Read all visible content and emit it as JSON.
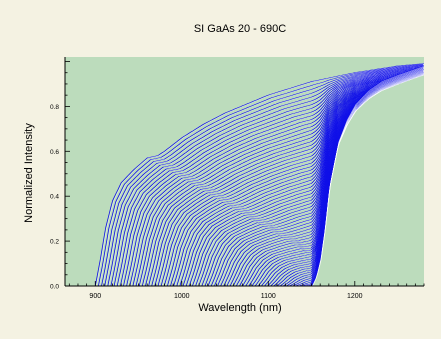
{
  "colors": {
    "page_background": "#f4f2e2",
    "plot_background": "#bcdcbc",
    "curve_color": "#1010e8",
    "curve_highlight": "#ffffff",
    "axis_color": "#000000"
  },
  "chart_data": {
    "type": "line",
    "title": "SI GaAs 20 - 690C",
    "xlabel": "Wavelength (nm)",
    "ylabel": "Normalized Intensity",
    "xlim": [
      865,
      1280
    ],
    "ylim": [
      0,
      1.02
    ],
    "x_ticks": [
      900,
      1000,
      1100,
      1200
    ],
    "x_tick_labels": [
      "900",
      "1000",
      "1100",
      "1200"
    ],
    "y_ticks": [
      0.0,
      0.2,
      0.4,
      0.6,
      0.8
    ],
    "y_tick_labels": [
      "0.0",
      "0.2",
      "0.4",
      "0.6",
      "0.8"
    ],
    "grid": false,
    "legend": "none",
    "series_count": 70,
    "series_description": "Family of normalized transmission curves; absorption edge shifts from about 900 nm (first curve) to about 1155 nm (last curve)",
    "first_curve": {
      "x": [
        900,
        905,
        912,
        920,
        930,
        945,
        960,
        972,
        980,
        990,
        1000,
        1025,
        1050,
        1075,
        1100,
        1125,
        1150,
        1175,
        1200,
        1225,
        1250,
        1280
      ],
      "y": [
        0.0,
        0.1,
        0.26,
        0.38,
        0.46,
        0.52,
        0.57,
        0.58,
        0.6,
        0.63,
        0.66,
        0.72,
        0.77,
        0.81,
        0.85,
        0.88,
        0.91,
        0.93,
        0.95,
        0.965,
        0.98,
        0.99
      ]
    },
    "last_curve": {
      "x": [
        1150,
        1155,
        1160,
        1165,
        1170,
        1180,
        1190,
        1200,
        1215,
        1230,
        1250,
        1265,
        1280
      ],
      "y": [
        0.0,
        0.04,
        0.12,
        0.26,
        0.44,
        0.64,
        0.74,
        0.81,
        0.87,
        0.91,
        0.94,
        0.96,
        0.98
      ]
    }
  }
}
